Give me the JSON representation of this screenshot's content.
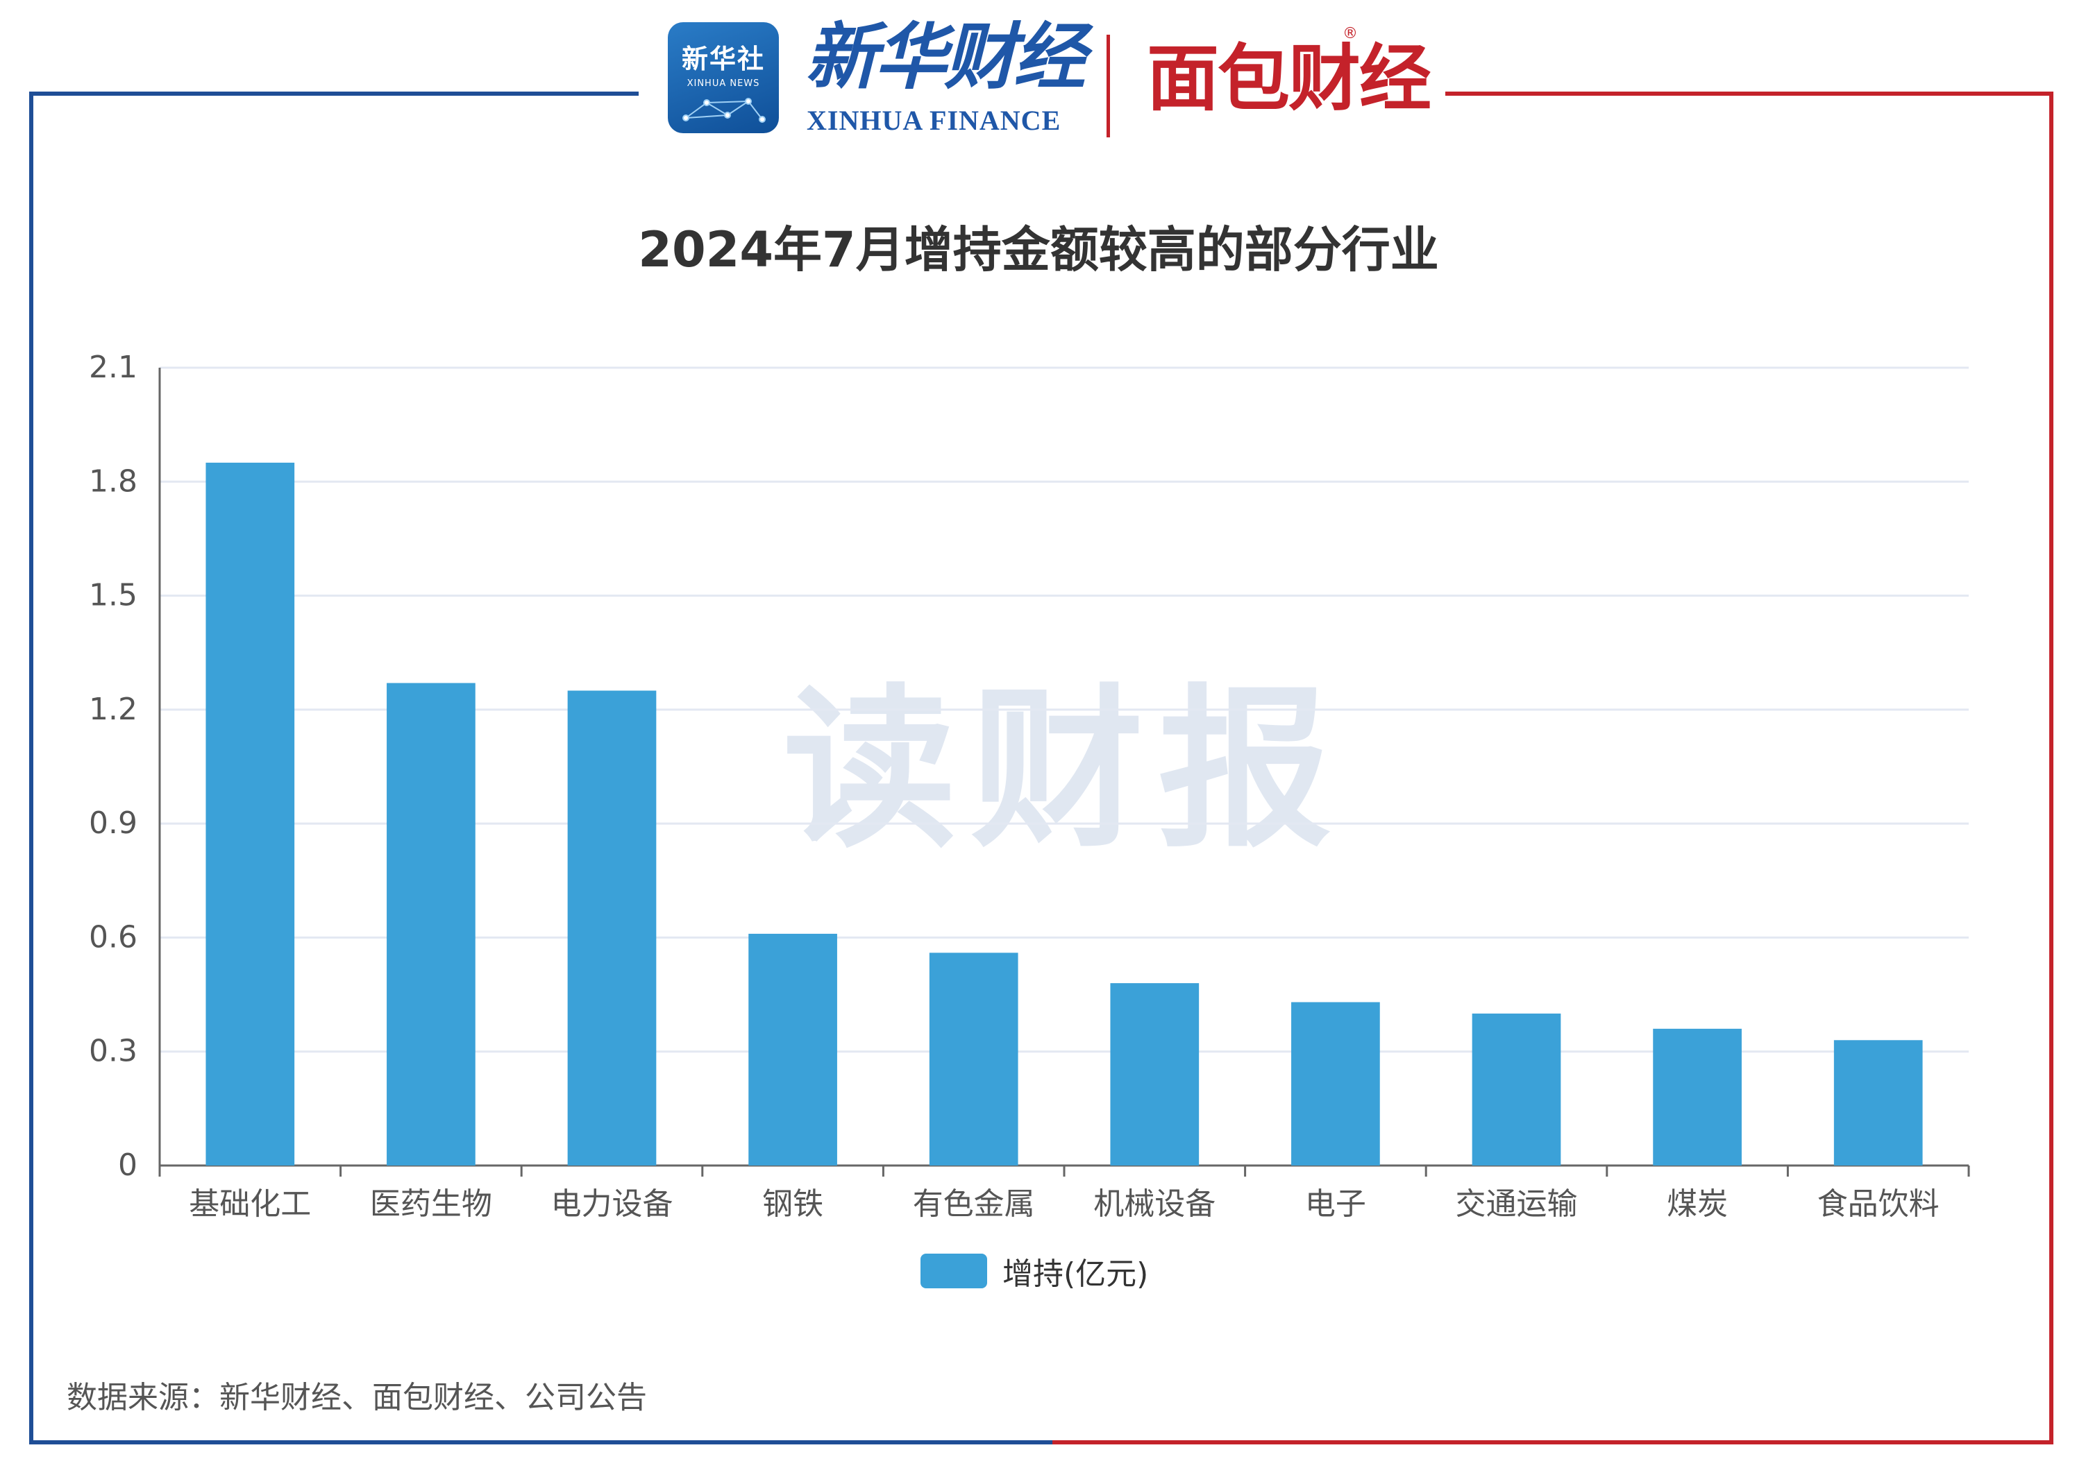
{
  "logos": {
    "xinhua_cn": "新华社",
    "xinhua_en": "XINHUA NEWS",
    "finance_cn": "新华财经",
    "finance_en": "XINHUA FINANCE",
    "mianbao": "面包财经",
    "reg_mark": "®"
  },
  "watermark": "读财报",
  "source_note": "数据来源：新华财经、面包财经、公司公告",
  "colors": {
    "bar": "#3ba1d8",
    "frame_blue": "#1f4e96",
    "frame_red": "#c4222a",
    "grid": "#e3e8f2"
  },
  "chart_data": {
    "type": "bar",
    "title": "2024年7月增持金额较高的部分行业",
    "xlabel": "",
    "ylabel": "",
    "categories": [
      "基础化工",
      "医药生物",
      "电力设备",
      "钢铁",
      "有色金属",
      "机械设备",
      "电子",
      "交通运输",
      "煤炭",
      "食品饮料"
    ],
    "series": [
      {
        "name": "增持(亿元)",
        "values": [
          1.85,
          1.27,
          1.25,
          0.61,
          0.56,
          0.48,
          0.43,
          0.4,
          0.36,
          0.33
        ]
      }
    ],
    "ylim": [
      0,
      2.1
    ],
    "yticks": [
      "0",
      "0.3",
      "0.6",
      "0.9",
      "1.2",
      "1.5",
      "1.8",
      "2.1"
    ],
    "grid": true,
    "legend_position": "bottom-center"
  }
}
